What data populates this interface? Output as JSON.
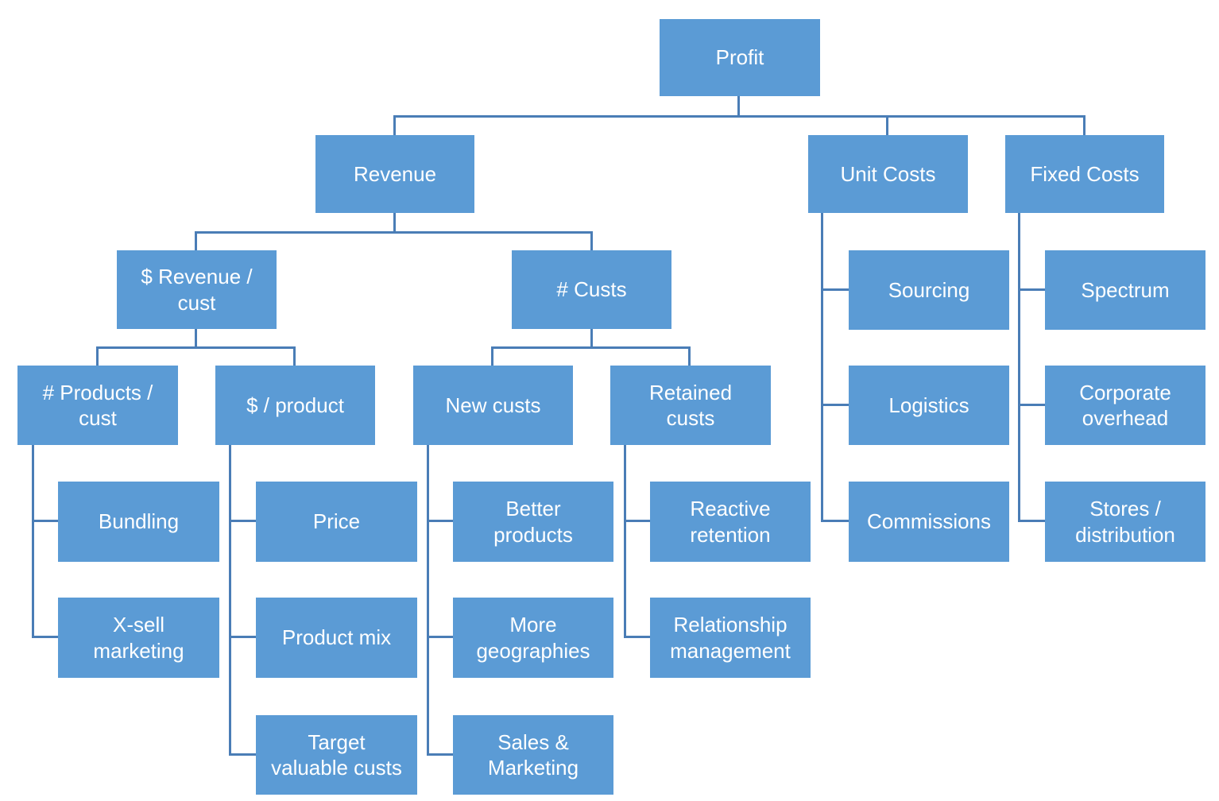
{
  "diagram_type": "tree",
  "colors": {
    "background": "#ffffff",
    "box_fill": "#5B9BD5",
    "connector": "#4A7DB6",
    "text": "#ffffff"
  },
  "nodes": [
    {
      "id": "profit",
      "label": "Profit",
      "parent": null
    },
    {
      "id": "revenue",
      "label": "Revenue",
      "parent": "profit"
    },
    {
      "id": "unit-costs",
      "label": "Unit Costs",
      "parent": "profit"
    },
    {
      "id": "fixed-costs",
      "label": "Fixed Costs",
      "parent": "profit"
    },
    {
      "id": "revenue-per-cust",
      "label": "$ Revenue / cust",
      "parent": "revenue"
    },
    {
      "id": "num-custs",
      "label": "# Custs",
      "parent": "revenue"
    },
    {
      "id": "products-per-cust",
      "label": "# Products / cust",
      "parent": "revenue-per-cust"
    },
    {
      "id": "dollar-per-product",
      "label": "$ / product",
      "parent": "revenue-per-cust"
    },
    {
      "id": "new-custs",
      "label": "New custs",
      "parent": "num-custs"
    },
    {
      "id": "retained-custs",
      "label": "Retained custs",
      "parent": "num-custs"
    },
    {
      "id": "bundling",
      "label": "Bundling",
      "parent": "products-per-cust"
    },
    {
      "id": "x-sell-marketing",
      "label": "X-sell marketing",
      "parent": "products-per-cust"
    },
    {
      "id": "price",
      "label": "Price",
      "parent": "dollar-per-product"
    },
    {
      "id": "product-mix",
      "label": "Product mix",
      "parent": "dollar-per-product"
    },
    {
      "id": "target-valuable-custs",
      "label": "Target valuable custs",
      "parent": "dollar-per-product"
    },
    {
      "id": "better-products",
      "label": "Better products",
      "parent": "new-custs"
    },
    {
      "id": "more-geographies",
      "label": "More geographies",
      "parent": "new-custs"
    },
    {
      "id": "sales-marketing",
      "label": "Sales & Marketing",
      "parent": "new-custs"
    },
    {
      "id": "reactive-retention",
      "label": "Reactive retention",
      "parent": "retained-custs"
    },
    {
      "id": "relationship-management",
      "label": "Relationship management",
      "parent": "retained-custs"
    },
    {
      "id": "sourcing",
      "label": "Sourcing",
      "parent": "unit-costs"
    },
    {
      "id": "logistics",
      "label": "Logistics",
      "parent": "unit-costs"
    },
    {
      "id": "commissions",
      "label": "Commissions",
      "parent": "unit-costs"
    },
    {
      "id": "spectrum",
      "label": "Spectrum",
      "parent": "fixed-costs"
    },
    {
      "id": "corporate-overhead",
      "label": "Corporate overhead",
      "parent": "fixed-costs"
    },
    {
      "id": "stores-distribution",
      "label": "Stores / distribution",
      "parent": "fixed-costs"
    }
  ]
}
